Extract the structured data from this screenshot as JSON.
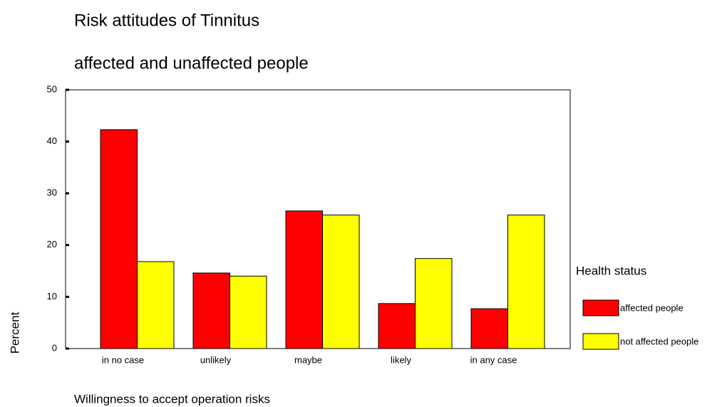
{
  "chart_data": {
    "type": "bar",
    "title": "Risk attitudes of Tinnitus",
    "subtitle": "affected and unaffected people",
    "x_label": "Willingness to accept operation risks",
    "y_label": "Percent",
    "legend_title": "Health status",
    "legend_position": "right",
    "categories": [
      "in no case",
      "unlikely",
      "maybe",
      "likely",
      "in any case"
    ],
    "series": [
      {
        "name": "affected people",
        "color": "#ff0000",
        "values": [
          42.3,
          14.6,
          26.6,
          8.7,
          7.7
        ]
      },
      {
        "name": "not affected people",
        "color": "#ffff00",
        "values": [
          16.8,
          14.0,
          25.8,
          17.4,
          25.8
        ]
      }
    ],
    "ylim": [
      0,
      50
    ],
    "yticks": [
      0,
      10,
      20,
      30,
      40,
      50
    ],
    "grid": false
  }
}
